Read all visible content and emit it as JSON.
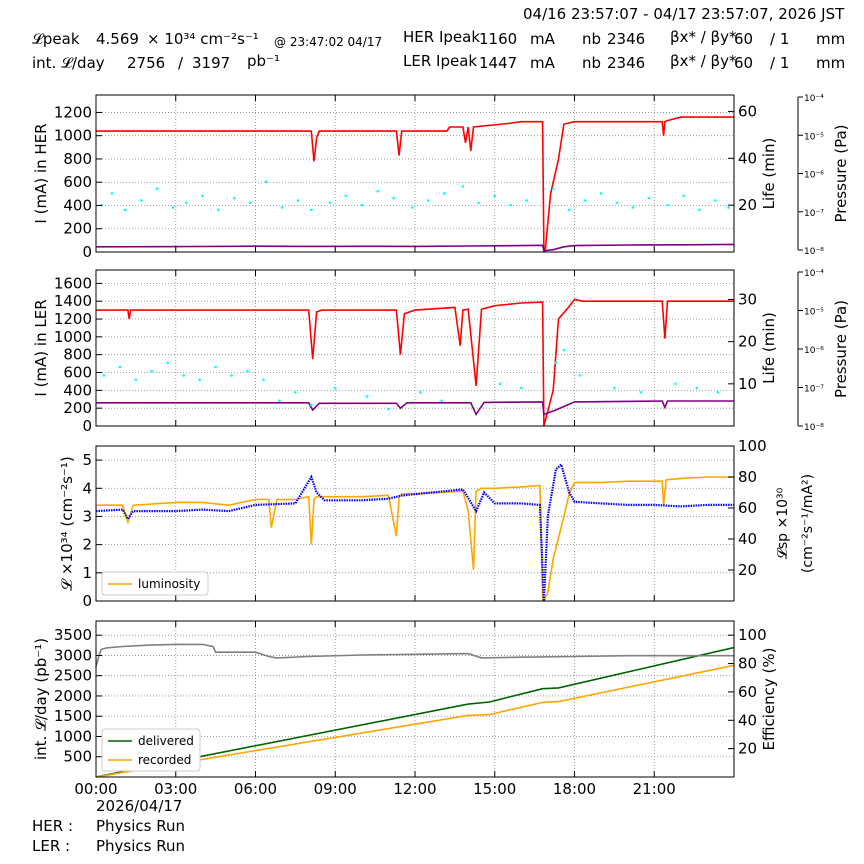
{
  "header": {
    "date_range": "04/16 23:57:07 - 04/17 23:57:07, 2026 JST",
    "lpeak_label": "𝓛peak",
    "lpeak_value": "4.569",
    "lpeak_unit": "× 10³⁴ cm⁻²s⁻¹",
    "lpeak_time": "@ 23:47:02 04/17",
    "intl_label": "int. 𝓛/day",
    "intl_value1": "2756",
    "intl_sep": "/",
    "intl_value2": "3197",
    "intl_unit": "pb⁻¹",
    "her_label": "HER Ipeak",
    "her_value": "1160",
    "her_unit": "mA",
    "nb_label": "nb",
    "her_nb": "2346",
    "beta_label": "βx* / βy*",
    "her_beta_x": "60",
    "her_beta_y": "/ 1",
    "beta_unit": "mm",
    "ler_label": "LER Ipeak",
    "ler_value": "1447",
    "ler_unit": "mA",
    "ler_nb": "2346",
    "ler_beta_x": "60",
    "ler_beta_y": "/ 1"
  },
  "footer": {
    "date": "2026/04/17",
    "her_label": "HER :",
    "her_status": "Physics Run",
    "ler_label": "LER :",
    "ler_status": "Physics Run"
  },
  "x_axis": {
    "range_hours": [
      0,
      24
    ],
    "ticks": [
      0,
      3,
      6,
      9,
      12,
      15,
      18,
      21
    ],
    "tick_labels": [
      "00:00",
      "03:00",
      "06:00",
      "09:00",
      "12:00",
      "15:00",
      "18:00",
      "21:00"
    ]
  },
  "colors": {
    "current": "#ff0000",
    "pressure": "#800080",
    "life": "#00ffff",
    "luminosity": "#ffa500",
    "specific_lum": "#0000ff",
    "delivered": "#006400",
    "recorded": "#ffa500",
    "efficiency": "#808080"
  },
  "chart_data": [
    {
      "type": "line",
      "ylabel": "I (mA) in HER",
      "ylim": [
        0,
        1350
      ],
      "yticks": [
        0,
        200,
        400,
        600,
        800,
        1000,
        1200
      ],
      "y2label": "Life (min)",
      "y2lim": [
        0,
        67
      ],
      "y2ticks": [
        20,
        40,
        60
      ],
      "y3label": "Pressure (Pa)",
      "y3ticks": [
        "10⁻⁸",
        "10⁻⁷",
        "10⁻⁶",
        "10⁻⁵",
        "10⁻⁴"
      ],
      "grid": true,
      "series": [
        {
          "role": "current",
          "axis": "left",
          "x": [
            0,
            8.1,
            8.2,
            8.3,
            8.4,
            11.3,
            11.4,
            11.5,
            13.2,
            13.3,
            13.8,
            13.9,
            14.0,
            14.1,
            14.2,
            15.5,
            16.0,
            16.8,
            16.85,
            16.9,
            17.1,
            17.4,
            17.6,
            17.8,
            18.0,
            18.5,
            21.3,
            21.35,
            21.4,
            21.5,
            22.0,
            24
          ],
          "y": [
            1040,
            1040,
            780,
            980,
            1040,
            1040,
            830,
            1040,
            1040,
            1075,
            1075,
            940,
            1075,
            870,
            1075,
            1105,
            1120,
            1120,
            0,
            20,
            500,
            800,
            1100,
            1110,
            1120,
            1120,
            1120,
            1000,
            1120,
            1130,
            1160,
            1160
          ]
        },
        {
          "role": "pressure",
          "axis": "left",
          "x": [
            0,
            2,
            4,
            6,
            8,
            10,
            12,
            14,
            16,
            16.8,
            16.85,
            17.2,
            17.6,
            18,
            20,
            22,
            24
          ],
          "y": [
            45,
            46,
            47,
            50,
            48,
            49,
            48,
            52,
            55,
            58,
            10,
            20,
            45,
            55,
            60,
            62,
            65
          ]
        },
        {
          "role": "life",
          "axis": "right",
          "style": "scatter",
          "x": [
            0.2,
            0.6,
            1.1,
            1.7,
            2.3,
            2.9,
            3.4,
            4.0,
            4.6,
            5.2,
            5.8,
            6.4,
            7.0,
            7.6,
            8.1,
            8.8,
            9.4,
            10.0,
            10.6,
            11.2,
            11.9,
            12.5,
            13.1,
            13.8,
            14.4,
            15.0,
            15.6,
            16.2,
            17.2,
            17.8,
            18.4,
            19.0,
            19.6,
            20.2,
            20.8,
            21.5,
            22.1,
            22.7,
            23.3,
            23.8
          ],
          "y": [
            20,
            25,
            18,
            22,
            27,
            19,
            21,
            24,
            18,
            23,
            21,
            30,
            19,
            22,
            18,
            21,
            24,
            20,
            26,
            23,
            19,
            22,
            25,
            28,
            21,
            24,
            20,
            22,
            27,
            18,
            22,
            25,
            21,
            19,
            23,
            20,
            24,
            18,
            22,
            19
          ]
        }
      ]
    },
    {
      "type": "line",
      "ylabel": "I (mA) in LER",
      "ylim": [
        0,
        1750
      ],
      "yticks": [
        0,
        200,
        400,
        600,
        800,
        1000,
        1200,
        1400,
        1600
      ],
      "y2label": "Life (min)",
      "y2lim": [
        0,
        37
      ],
      "y2ticks": [
        10,
        20,
        30
      ],
      "y3label": "Pressure (Pa)",
      "y3ticks": [
        "10⁻⁸",
        "10⁻⁷",
        "10⁻⁶",
        "10⁻⁵",
        "10⁻⁴"
      ],
      "grid": true,
      "series": [
        {
          "role": "current",
          "axis": "left",
          "x": [
            0,
            1.2,
            1.25,
            1.3,
            8.0,
            8.15,
            8.3,
            8.5,
            11.3,
            11.45,
            11.6,
            12.0,
            13.5,
            13.7,
            13.8,
            14.0,
            14.3,
            14.5,
            15.0,
            16.0,
            16.8,
            16.85,
            17.2,
            17.4,
            17.8,
            18.0,
            18.3,
            19.0,
            21.0,
            21.3,
            21.4,
            21.5,
            22.0,
            24
          ],
          "y": [
            1300,
            1300,
            1200,
            1300,
            1300,
            750,
            1280,
            1300,
            1300,
            800,
            1260,
            1300,
            1330,
            900,
            1300,
            1310,
            450,
            1310,
            1350,
            1380,
            1390,
            0,
            400,
            1200,
            1340,
            1420,
            1400,
            1400,
            1400,
            1400,
            980,
            1400,
            1400,
            1400
          ]
        },
        {
          "role": "pressure",
          "axis": "left",
          "x": [
            0,
            8.0,
            8.15,
            8.4,
            11.3,
            11.45,
            11.7,
            14.1,
            14.3,
            14.6,
            16.8,
            16.85,
            17.3,
            18,
            21.3,
            21.4,
            21.5,
            24
          ],
          "y": [
            260,
            260,
            180,
            255,
            255,
            200,
            260,
            260,
            130,
            265,
            270,
            130,
            180,
            270,
            280,
            210,
            280,
            280
          ]
        },
        {
          "role": "life",
          "axis": "right",
          "style": "scatter",
          "x": [
            0.3,
            0.9,
            1.5,
            2.1,
            2.7,
            3.3,
            3.9,
            4.5,
            5.1,
            5.7,
            6.3,
            6.9,
            7.5,
            8.1,
            9.0,
            10.2,
            11.0,
            12.2,
            13.0,
            15.2,
            16.0,
            17.3,
            17.6,
            18.2,
            19.5,
            20.5,
            21.8,
            22.6,
            23.4
          ],
          "y": [
            12,
            14,
            11,
            13,
            15,
            12,
            11,
            14,
            12,
            13,
            11,
            6,
            8,
            5,
            9,
            7,
            4,
            8,
            6,
            10,
            9,
            15,
            18,
            12,
            9,
            8,
            10,
            9,
            8
          ]
        }
      ]
    },
    {
      "type": "line",
      "ylabel": "𝓛 ×10³⁴ (cm⁻²s⁻¹)",
      "ylim": [
        0,
        5.5
      ],
      "yticks": [
        0,
        1,
        2,
        3,
        4,
        5
      ],
      "y2label": "𝓛sp ×10³⁰ (cm⁻²s⁻¹/mA²)",
      "y2lim": [
        0,
        100
      ],
      "y2ticks": [
        20,
        40,
        60,
        80,
        100
      ],
      "grid": true,
      "legend": "lower-left",
      "series": [
        {
          "name": "luminosity",
          "role": "luminosity",
          "axis": "left",
          "x": [
            0,
            1.0,
            1.2,
            1.4,
            3.0,
            4.0,
            5.0,
            6.0,
            6.5,
            6.6,
            6.8,
            7.5,
            8.0,
            8.1,
            8.2,
            8.3,
            8.5,
            10.0,
            11.0,
            11.3,
            11.4,
            11.5,
            12.0,
            13.0,
            13.8,
            14.0,
            14.2,
            14.3,
            14.5,
            15.0,
            16.0,
            16.7,
            16.8,
            16.85,
            17.0,
            17.2,
            17.6,
            17.8,
            18.0,
            19.0,
            20.0,
            21.3,
            21.35,
            21.45,
            22.0,
            23.0,
            24
          ],
          "y": [
            3.4,
            3.4,
            2.8,
            3.4,
            3.5,
            3.5,
            3.4,
            3.6,
            3.6,
            2.6,
            3.6,
            3.6,
            3.7,
            2.0,
            3.6,
            3.7,
            3.7,
            3.7,
            3.75,
            2.3,
            3.7,
            3.8,
            3.8,
            3.85,
            3.9,
            3.2,
            1.1,
            3.9,
            4.0,
            4.0,
            4.05,
            4.1,
            0.1,
            0,
            0.3,
            1.5,
            3.0,
            3.8,
            4.2,
            4.2,
            4.25,
            4.25,
            3.4,
            4.3,
            4.35,
            4.4,
            4.4
          ]
        },
        {
          "role": "specific_lum",
          "axis": "right",
          "style": "dotline",
          "x": [
            0,
            1.0,
            1.2,
            1.4,
            3.0,
            4.0,
            5.0,
            6.0,
            7.5,
            8.1,
            8.3,
            8.6,
            10.0,
            11.0,
            11.5,
            12.0,
            13.8,
            14.3,
            14.6,
            15.0,
            16.0,
            16.7,
            16.85,
            17.0,
            17.3,
            17.5,
            17.8,
            18.0,
            19.0,
            20.0,
            21.0,
            22.0,
            23.0,
            24
          ],
          "y": [
            58,
            59,
            53,
            58,
            58,
            59,
            58,
            62,
            63,
            80,
            70,
            65,
            65,
            66,
            68,
            69,
            72,
            58,
            70,
            63,
            63,
            62,
            0,
            55,
            85,
            88,
            70,
            64,
            63,
            62,
            62,
            61,
            62,
            62
          ]
        }
      ]
    },
    {
      "type": "line",
      "ylabel": "int. 𝓛/day (pb⁻¹)",
      "ylim": [
        0,
        3850
      ],
      "yticks": [
        500,
        1000,
        1500,
        2000,
        2500,
        3000,
        3500
      ],
      "y2label": "Efficiency (%)",
      "y2lim": [
        0,
        110
      ],
      "y2ticks": [
        20,
        40,
        60,
        80,
        100
      ],
      "grid": true,
      "legend": "lower-left",
      "series": [
        {
          "name": "delivered",
          "role": "delivered",
          "axis": "left",
          "x": [
            0,
            14,
            14.8,
            16.8,
            17.4,
            24
          ],
          "y": [
            0,
            1800,
            1850,
            2180,
            2200,
            3197
          ]
        },
        {
          "name": "recorded",
          "role": "recorded",
          "axis": "left",
          "x": [
            0,
            14,
            14.8,
            16.8,
            17.4,
            24
          ],
          "y": [
            0,
            1520,
            1540,
            1840,
            1860,
            2756
          ]
        },
        {
          "role": "efficiency",
          "axis": "right",
          "x": [
            0,
            0.1,
            0.2,
            0.4,
            1.0,
            2.0,
            3.0,
            4.0,
            4.4,
            4.5,
            6.0,
            6.5,
            6.8,
            8.0,
            10.0,
            12.0,
            14.0,
            14.5,
            16.0,
            18.0,
            20.0,
            22.0,
            24
          ],
          "y": [
            78,
            85,
            90,
            91,
            92,
            93,
            93.5,
            93.5,
            92,
            88,
            88,
            85,
            84,
            85,
            86,
            86.5,
            87,
            84,
            84.5,
            85,
            85.5,
            85.5,
            85.5
          ]
        }
      ]
    }
  ]
}
